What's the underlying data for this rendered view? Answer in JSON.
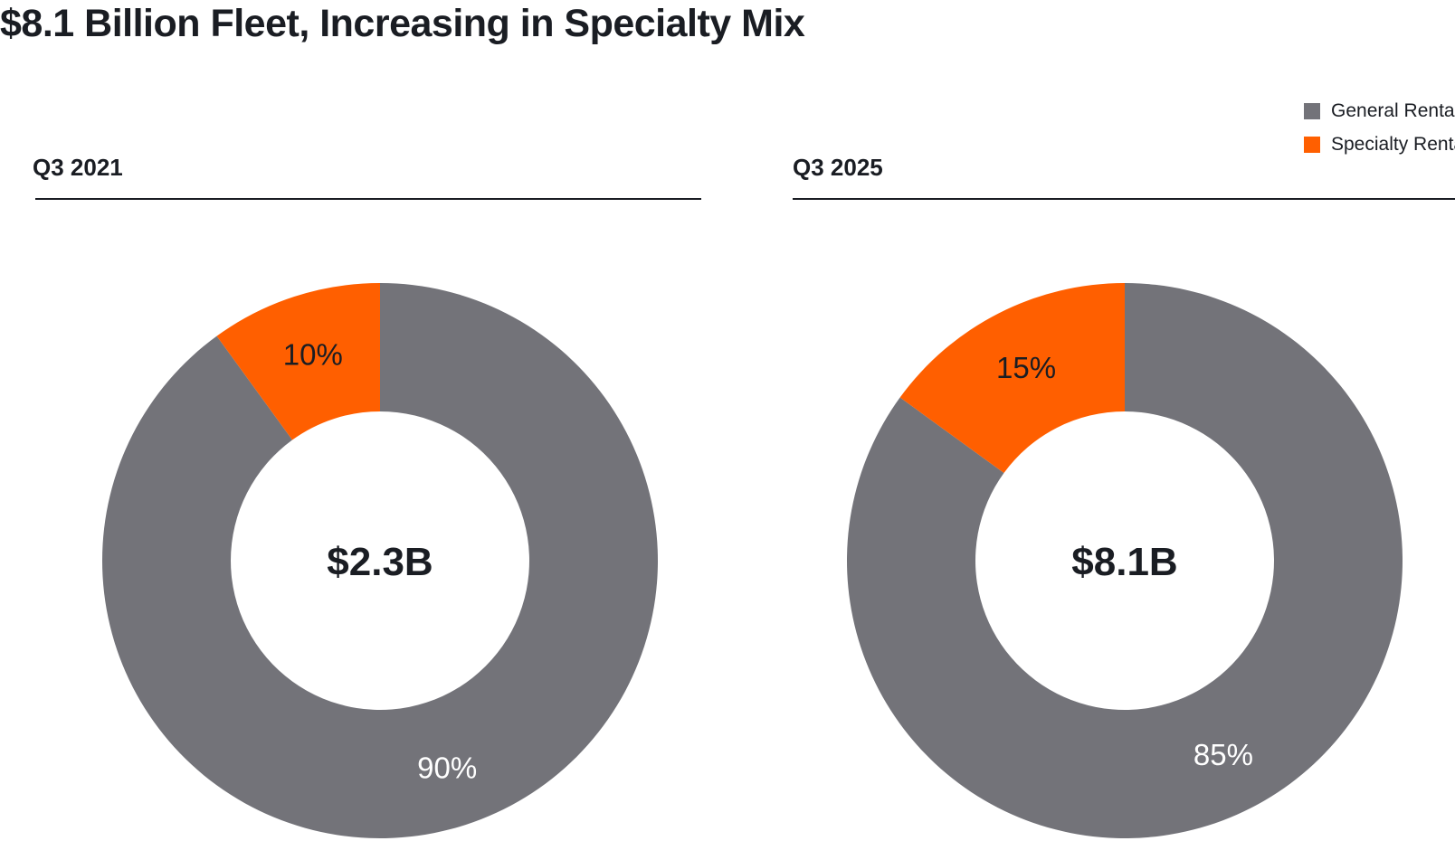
{
  "title": "$8.1 Billion Fleet, Increasing in Specialty Mix",
  "legend": [
    {
      "label": "General Rental",
      "color": "#737379"
    },
    {
      "label": "Specialty Rental",
      "color": "#ff5f00"
    }
  ],
  "chart_data": [
    {
      "type": "pie",
      "subtitle": "Q3 2021",
      "center_label": "$2.3B",
      "slices": [
        {
          "name": "General Rental",
          "value": 90,
          "label": "90%",
          "color": "#737379"
        },
        {
          "name": "Specialty Rental",
          "value": 10,
          "label": "10%",
          "color": "#ff5f00"
        }
      ]
    },
    {
      "type": "pie",
      "subtitle": "Q3 2025",
      "center_label": "$8.1B",
      "slices": [
        {
          "name": "General Rental",
          "value": 85,
          "label": "85%",
          "color": "#737379"
        },
        {
          "name": "Specialty Rental",
          "value": 15,
          "label": "15%",
          "color": "#ff5f00"
        }
      ]
    }
  ]
}
